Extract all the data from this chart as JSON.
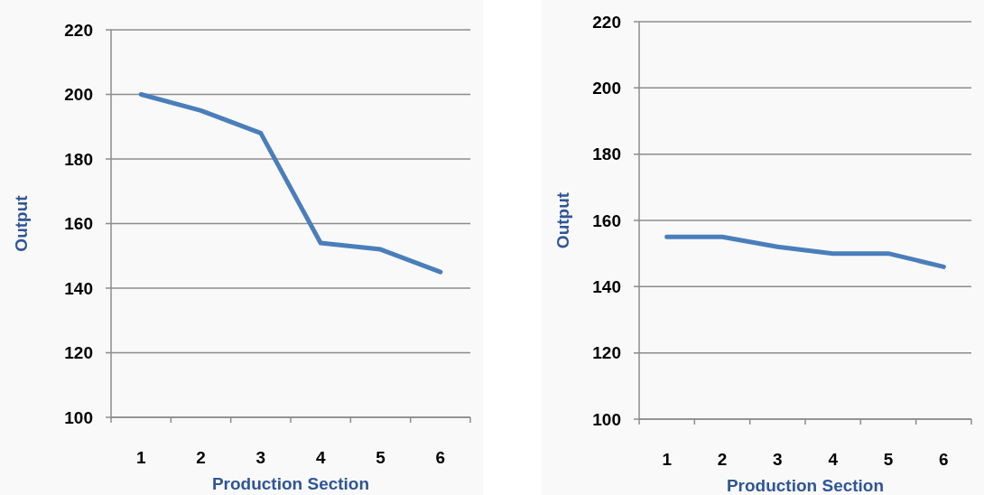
{
  "chart_data": [
    {
      "type": "line",
      "xlabel": "Production Section",
      "ylabel": "Output",
      "categories": [
        "1",
        "2",
        "3",
        "4",
        "5",
        "6"
      ],
      "series": [
        {
          "color": "#4a7ebb",
          "values": [
            200,
            195,
            188,
            154,
            152,
            145
          ]
        }
      ],
      "ylim": [
        100,
        220
      ],
      "yticks": [
        100,
        120,
        140,
        160,
        180,
        200,
        220
      ],
      "grid": "y",
      "marker": "none",
      "line_style": "solid"
    },
    {
      "type": "line",
      "xlabel": "Production Section",
      "ylabel": "Output",
      "categories": [
        "1",
        "2",
        "3",
        "4",
        "5",
        "6"
      ],
      "series": [
        {
          "color": "#4a7ebb",
          "values": [
            155,
            155,
            152,
            150,
            150,
            146
          ]
        }
      ],
      "ylim": [
        100,
        220
      ],
      "yticks": [
        100,
        120,
        140,
        160,
        180,
        200,
        220
      ],
      "grid": "y",
      "marker": "none",
      "line_style": "solid"
    }
  ]
}
